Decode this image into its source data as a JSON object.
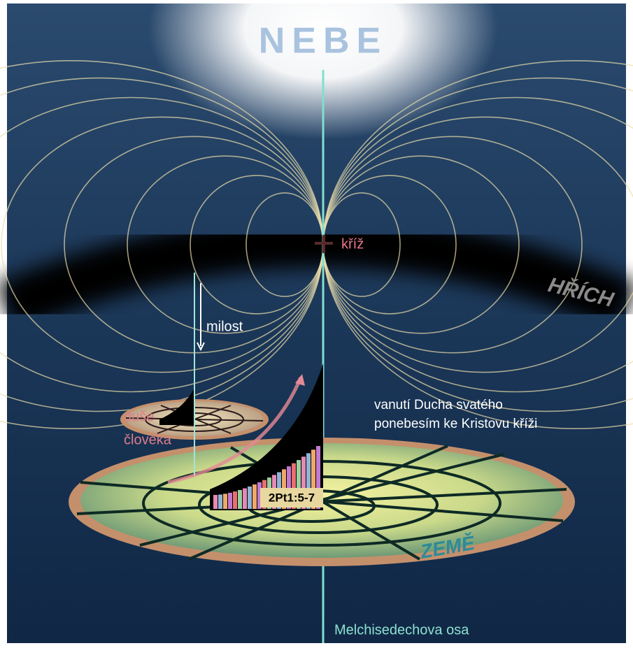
{
  "title": "NEBE",
  "labels": {
    "cross": "kříž",
    "sin": "HŘÍCH",
    "grace": "milost",
    "soul": [
      "duše",
      "člověka"
    ],
    "spirit": [
      "vanutí Ducha svatého",
      "ponebesím ke Kristovu kříži"
    ],
    "verse": "2Pt1:5-7",
    "earth": "ZEMĚ",
    "axis": "Melchisedechova osa"
  }
}
